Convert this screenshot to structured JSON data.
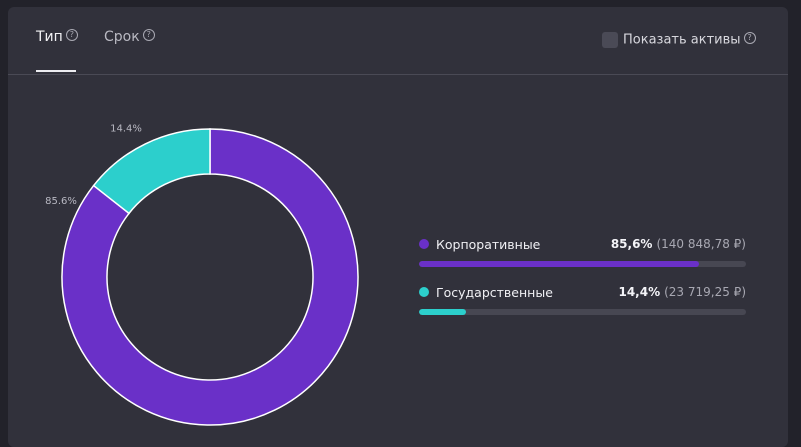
{
  "tabs": [
    {
      "label": "Тип",
      "active": true
    },
    {
      "label": "Срок",
      "active": false
    }
  ],
  "help_glyph": "?",
  "show_assets": {
    "label": "Показать активы",
    "checked": false
  },
  "chart_data": {
    "type": "pie",
    "donut": true,
    "categories": [
      "Корпоративные",
      "Государственные"
    ],
    "values": [
      85.6,
      14.4
    ],
    "colors": [
      "#6a30c8",
      "#2ccfcc"
    ],
    "slice_labels": [
      "85.6%",
      "14.4%"
    ]
  },
  "legend": [
    {
      "name": "Корпоративные",
      "pct": "85,6%",
      "amount": "(140 848,78 ₽)",
      "fraction": 0.856,
      "color": "#6a30c8"
    },
    {
      "name": "Государственные",
      "pct": "14,4%",
      "amount": "(23 719,25 ₽)",
      "fraction": 0.144,
      "color": "#2ccfcc"
    }
  ]
}
